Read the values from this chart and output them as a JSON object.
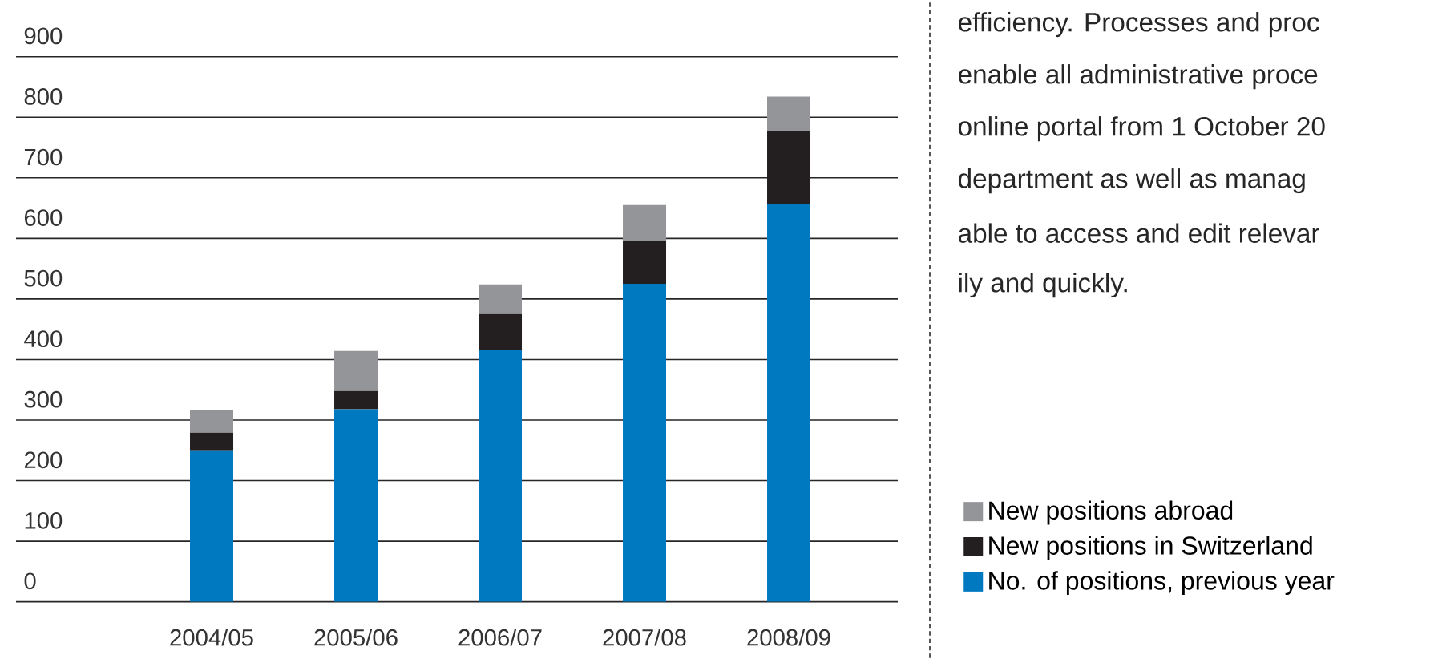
{
  "chart_data": {
    "type": "bar",
    "stacked": true,
    "categories": [
      "2004/05",
      "2005/06",
      "2006/07",
      "2007/08",
      "2008/09"
    ],
    "series": [
      {
        "name": "No. of positions, previous year",
        "color": "#0079c1",
        "values": [
          250,
          318,
          416,
          525,
          656
        ]
      },
      {
        "name": "New positions in Switzerland",
        "color": "#231f20",
        "values": [
          29,
          30,
          59,
          71,
          121
        ]
      },
      {
        "name": "New positions abroad",
        "color": "#939598",
        "values": [
          37,
          66,
          49,
          59,
          57
        ]
      }
    ],
    "ylim": [
      0,
      900
    ],
    "yticks": [
      0,
      100,
      200,
      300,
      400,
      500,
      600,
      700,
      800,
      900
    ],
    "grid": "y",
    "legend": "right",
    "annotations": [
      "efficiency. Processes and proc",
      "enable all administrative proce",
      "online portal from 1 October 20",
      "department as well as manag",
      "able to access and edit relevar",
      "ily and quickly."
    ]
  }
}
